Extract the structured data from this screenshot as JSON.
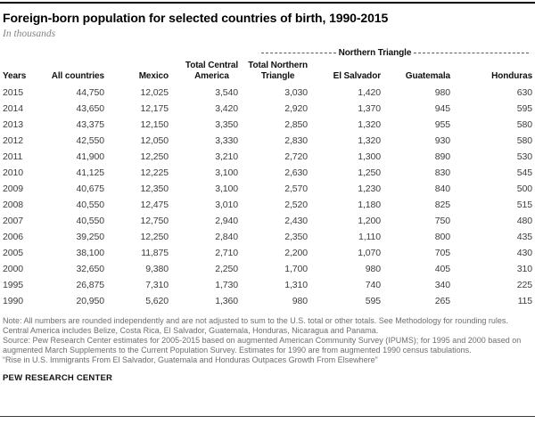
{
  "page": {
    "brand": "PEW RESEARCH CENTER"
  },
  "notes": {
    "note": "Note: All numbers are rounded independently and are not adjusted to sum to the U.S. total or other totals. See Methodology for rounding rules. Central America includes Belize, Costa Rica, El Salvador, Guatemala, Honduras, Nicaragua and Panama.",
    "source": "Source: Pew Research Center estimates for 2005-2015 based on augmented American Community Survey (IPUMS); for 1995 and 2000 based on augmented March Supplements to the Current Population Survey. Estimates for 1990 are from augmented 1990 census tabulations.",
    "report_title": "“Rise in U.S. Immigrants From El Salvador, Guatemala and Honduras Outpaces Growth From Elsewhere”"
  },
  "chart_data": {
    "type": "table",
    "title": "Foreign-born population for selected countries of birth, 1990-2015",
    "units": "In thousands",
    "spanner_label": "Northern Triangle",
    "spanner_covers": [
      "El Salvador",
      "Guatemala",
      "Honduras"
    ],
    "columns": [
      "Years",
      "All countries",
      "Mexico",
      "Total Central\nAmerica",
      "Total Northern\nTriangle",
      "El Salvador",
      "Guatemala",
      "Honduras"
    ],
    "rows": [
      [
        2015,
        44750,
        12025,
        3540,
        3030,
        1420,
        980,
        630
      ],
      [
        2014,
        43650,
        12175,
        3420,
        2920,
        1370,
        945,
        595
      ],
      [
        2013,
        43375,
        12150,
        3350,
        2850,
        1320,
        955,
        580
      ],
      [
        2012,
        42550,
        12050,
        3330,
        2830,
        1320,
        930,
        580
      ],
      [
        2011,
        41900,
        12250,
        3210,
        2720,
        1300,
        890,
        530
      ],
      [
        2010,
        41125,
        12225,
        3100,
        2630,
        1250,
        830,
        545
      ],
      [
        2009,
        40675,
        12350,
        3100,
        2570,
        1230,
        840,
        500
      ],
      [
        2008,
        40550,
        12475,
        3010,
        2520,
        1180,
        825,
        515
      ],
      [
        2007,
        40550,
        12750,
        2940,
        2430,
        1200,
        750,
        480
      ],
      [
        2006,
        39250,
        12250,
        2840,
        2350,
        1110,
        800,
        435
      ],
      [
        2005,
        38100,
        11875,
        2710,
        2200,
        1070,
        705,
        430
      ],
      [
        2000,
        32650,
        9380,
        2250,
        1700,
        980,
        405,
        310
      ],
      [
        1995,
        26875,
        7310,
        1730,
        1310,
        740,
        340,
        225
      ],
      [
        1990,
        20950,
        5620,
        1360,
        980,
        595,
        265,
        115
      ]
    ],
    "colors": {
      "title_text": "#000000",
      "subtitle_text": "#848484",
      "header_text": "#111111",
      "data_text": "#3d3d3d",
      "note_text": "#6e6e6e",
      "top_rule": "#000000",
      "bottom_rule": "#3a3a3a"
    },
    "layout": {
      "spanner_position": "above columns 5-8",
      "grid": "off",
      "column_alignment": [
        "left",
        "right",
        "right",
        "right",
        "right",
        "right",
        "right",
        "right"
      ]
    }
  }
}
